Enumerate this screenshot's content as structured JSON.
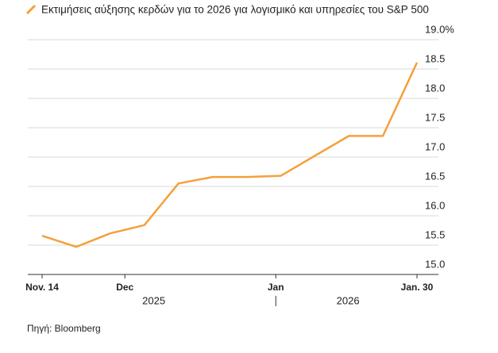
{
  "chart_data": {
    "type": "line",
    "title": "Εκτιμήσεις αύξησης κερδών για το 2026 για λογισμικό και υπηρεσίες του S&P 500",
    "source": "Πηγή: Bloomberg",
    "x": [
      "2025-11-14",
      "2025-11-21",
      "2025-11-28",
      "2025-12-05",
      "2025-12-12",
      "2025-12-19",
      "2025-12-26",
      "2026-01-02",
      "2026-01-16",
      "2026-01-23",
      "2026-01-30"
    ],
    "series": [
      {
        "name": "Εκτιμήσεις αύξησης κερδών για το 2026 για λογισμικό και υπηρεσίες του S&P 500",
        "color": "#f5a03a",
        "values": [
          15.66,
          15.47,
          15.7,
          15.84,
          16.55,
          16.66,
          16.66,
          16.68,
          17.36,
          17.36,
          18.61
        ]
      }
    ],
    "xlim": [
      "2025-11-14",
      "2026-01-30"
    ],
    "xticks": [
      {
        "value": "2025-11-14",
        "label": "Nov. 14"
      },
      {
        "value": "2025-12-01",
        "label": "Dec"
      },
      {
        "value": "2026-01-01",
        "label": "Jan"
      },
      {
        "value": "2026-01-30",
        "label": "Jan. 30"
      }
    ],
    "year_labels": [
      "2025",
      "2026"
    ],
    "ylim": [
      15,
      19
    ],
    "yticks": [
      {
        "value": 15,
        "label": "15.0"
      },
      15.5,
      {
        "value": 16,
        "label": "16.0"
      },
      16.5,
      {
        "value": 17,
        "label": "17.0"
      },
      17.5,
      {
        "value": 18,
        "label": "18.0"
      },
      18.5,
      {
        "value": 19,
        "label": "19.0%"
      }
    ],
    "grid": true
  }
}
